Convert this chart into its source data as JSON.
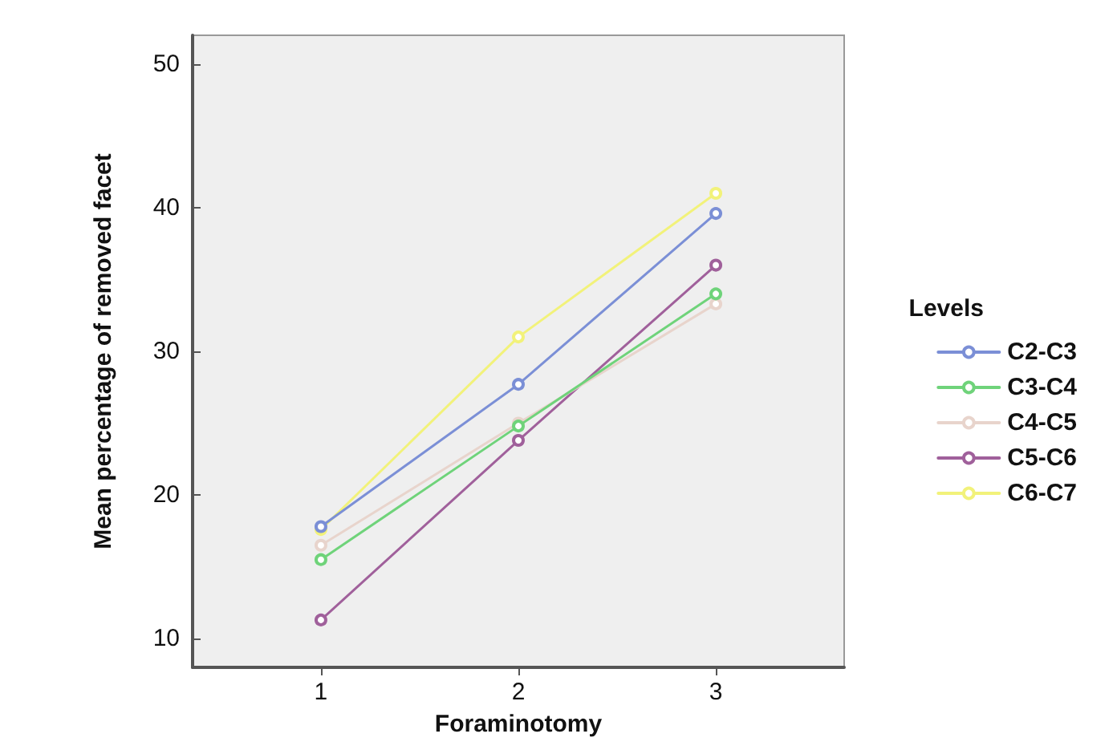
{
  "chart_data": {
    "type": "line",
    "xlabel": "Foraminotomy",
    "ylabel": "Mean percentage of removed facet",
    "legend_title": "Levels",
    "legend": "right",
    "marker": "circle",
    "grid": false,
    "x": [
      1,
      2,
      3
    ],
    "xlim": [
      0.35,
      3.65
    ],
    "xticks": [
      1,
      2,
      3
    ],
    "ylim": [
      8,
      52
    ],
    "yticks": [
      10,
      20,
      30,
      40,
      50
    ],
    "series": [
      {
        "name": "C2-C3",
        "color": "#7b8fd6",
        "values": [
          17.8,
          27.7,
          39.6
        ]
      },
      {
        "name": "C3-C4",
        "color": "#6fd37a",
        "values": [
          15.5,
          24.8,
          34
        ]
      },
      {
        "name": "C4-C5",
        "color": "#e8d4cc",
        "values": [
          16.5,
          25,
          33.3
        ]
      },
      {
        "name": "C5-C6",
        "color": "#a0609b",
        "values": [
          11.3,
          23.8,
          36
        ]
      },
      {
        "name": "C6-C7",
        "color": "#f2f27a",
        "values": [
          17.6,
          31,
          41
        ]
      }
    ]
  }
}
